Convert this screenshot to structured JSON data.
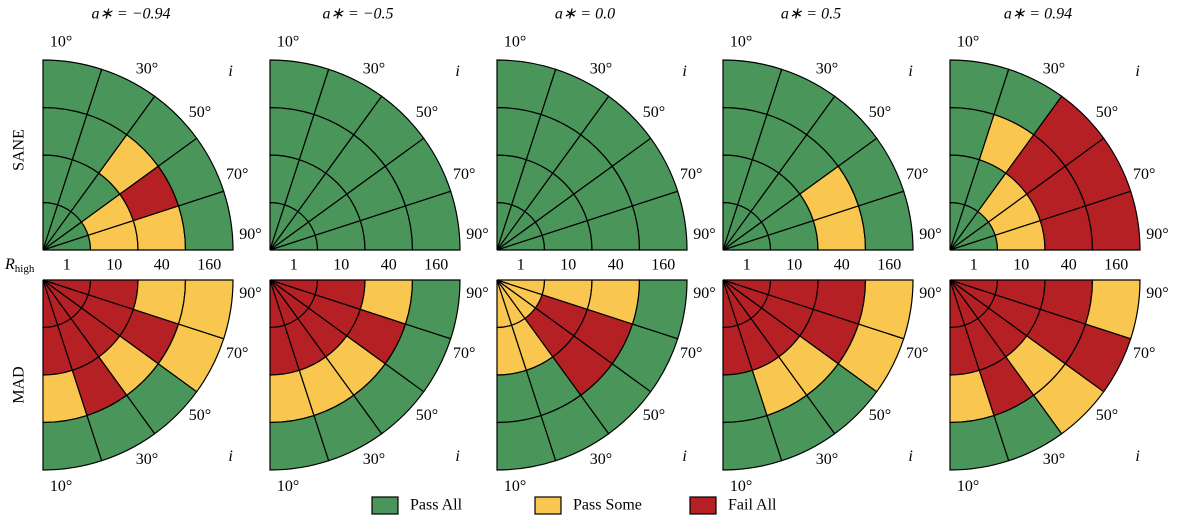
{
  "columns": [
    "a∗ = −0.94",
    "a∗ = −0.5",
    "a∗ = 0.0",
    "a∗ = 0.5",
    "a∗ = 0.94"
  ],
  "rows": [
    {
      "label": "SANE",
      "cells": [
        [
          [
            0,
            0,
            0,
            0,
            0
          ],
          [
            0,
            0,
            0,
            1,
            1
          ],
          [
            0,
            0,
            1,
            2,
            1
          ],
          [
            0,
            0,
            0,
            0,
            0
          ]
        ],
        [
          [
            0,
            0,
            0,
            0,
            0
          ],
          [
            0,
            0,
            0,
            0,
            0
          ],
          [
            0,
            0,
            0,
            0,
            0
          ],
          [
            0,
            0,
            0,
            0,
            0
          ]
        ],
        [
          [
            0,
            0,
            0,
            0,
            0
          ],
          [
            0,
            0,
            0,
            0,
            0
          ],
          [
            0,
            0,
            0,
            0,
            0
          ],
          [
            0,
            0,
            0,
            0,
            0
          ]
        ],
        [
          [
            0,
            0,
            0,
            0,
            0
          ],
          [
            0,
            0,
            0,
            0,
            0
          ],
          [
            0,
            0,
            0,
            1,
            1
          ],
          [
            0,
            0,
            0,
            0,
            0
          ]
        ],
        [
          [
            0,
            0,
            0,
            0,
            0
          ],
          [
            0,
            0,
            1,
            1,
            1
          ],
          [
            0,
            1,
            2,
            2,
            2
          ],
          [
            0,
            0,
            2,
            2,
            2
          ]
        ]
      ]
    },
    {
      "label": "MAD",
      "cells": [
        [
          [
            2,
            2,
            2,
            2,
            2
          ],
          [
            2,
            2,
            2,
            2,
            2
          ],
          [
            1,
            2,
            1,
            2,
            1
          ],
          [
            0,
            0,
            0,
            1,
            1
          ]
        ],
        [
          [
            2,
            2,
            2,
            2,
            2
          ],
          [
            2,
            2,
            2,
            2,
            2
          ],
          [
            1,
            1,
            1,
            2,
            1
          ],
          [
            0,
            0,
            0,
            0,
            0
          ]
        ],
        [
          [
            1,
            1,
            1,
            1,
            1
          ],
          [
            1,
            1,
            2,
            2,
            1
          ],
          [
            0,
            0,
            2,
            2,
            1
          ],
          [
            0,
            0,
            0,
            0,
            0
          ]
        ],
        [
          [
            2,
            2,
            2,
            2,
            2
          ],
          [
            2,
            2,
            2,
            2,
            2
          ],
          [
            0,
            1,
            1,
            2,
            2
          ],
          [
            0,
            0,
            0,
            1,
            1
          ]
        ],
        [
          [
            2,
            2,
            2,
            2,
            2
          ],
          [
            2,
            2,
            2,
            2,
            2
          ],
          [
            1,
            2,
            1,
            2,
            2
          ],
          [
            0,
            0,
            1,
            2,
            1
          ]
        ]
      ]
    }
  ],
  "r_label": "R",
  "r_sub": "high",
  "r_ticks": [
    "1",
    "10",
    "40",
    "160"
  ],
  "i_label": "i",
  "i_ticks": [
    "10°",
    "30°",
    "50°",
    "70°",
    "90°"
  ],
  "legend": [
    {
      "label": "Pass All",
      "color": "#4a965a"
    },
    {
      "label": "Pass Some",
      "color": "#f9c74f"
    },
    {
      "label": "Fail All",
      "color": "#b52025"
    }
  ]
}
